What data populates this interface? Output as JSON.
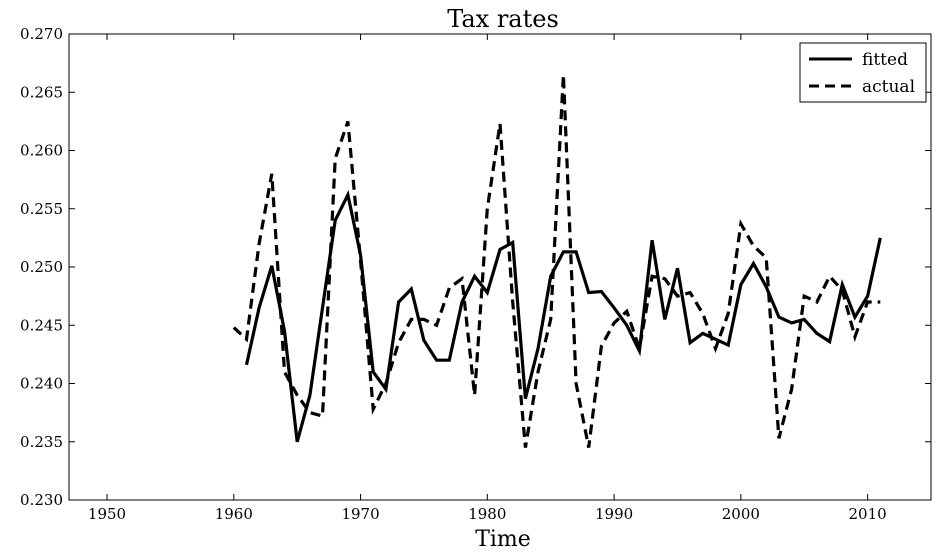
{
  "chart_data": {
    "type": "line",
    "title": "Tax rates",
    "xlabel": "Time",
    "ylabel": "",
    "xlim": [
      1947,
      2015
    ],
    "ylim": [
      0.23,
      0.27
    ],
    "xticks": [
      1950,
      1960,
      1970,
      1980,
      1990,
      2000,
      2010
    ],
    "yticks": [
      "0.230",
      "0.235",
      "0.240",
      "0.245",
      "0.250",
      "0.255",
      "0.260",
      "0.265",
      "0.270"
    ],
    "grid": false,
    "legend_position": "top-right",
    "series": [
      {
        "name": "fitted",
        "style": "solid",
        "color": "#000000",
        "x": [
          1961,
          1962,
          1963,
          1964,
          1965,
          1966,
          1967,
          1968,
          1969,
          1970,
          1971,
          1972,
          1973,
          1974,
          1975,
          1976,
          1977,
          1978,
          1979,
          1980,
          1981,
          1982,
          1983,
          1984,
          1985,
          1986,
          1987,
          1988,
          1989,
          1990,
          1991,
          1992,
          1993,
          1994,
          1995,
          1996,
          1997,
          1998,
          1999,
          2000,
          2001,
          2002,
          2003,
          2004,
          2005,
          2006,
          2007,
          2008,
          2009,
          2010,
          2011
        ],
        "y": [
          0.2416,
          0.2465,
          0.2501,
          0.2445,
          0.235,
          0.239,
          0.2465,
          0.254,
          0.2562,
          0.251,
          0.241,
          0.2395,
          0.247,
          0.2481,
          0.2437,
          0.242,
          0.242,
          0.247,
          0.2492,
          0.2478,
          0.2515,
          0.2521,
          0.2387,
          0.243,
          0.2492,
          0.2513,
          0.2513,
          0.2478,
          0.2479,
          0.2465,
          0.245,
          0.2428,
          0.2523,
          0.2455,
          0.2499,
          0.2435,
          0.2443,
          0.2438,
          0.2433,
          0.2485,
          0.2503,
          0.2483,
          0.2457,
          0.2452,
          0.2455,
          0.2443,
          0.2436,
          0.2485,
          0.2457,
          0.2475,
          0.2525
        ]
      },
      {
        "name": "actual",
        "style": "dashed",
        "color": "#000000",
        "x": [
          1960,
          1961,
          1962,
          1963,
          1964,
          1965,
          1966,
          1967,
          1968,
          1969,
          1970,
          1971,
          1972,
          1973,
          1974,
          1975,
          1976,
          1977,
          1978,
          1979,
          1980,
          1981,
          1982,
          1983,
          1984,
          1985,
          1986,
          1987,
          1988,
          1989,
          1990,
          1991,
          1992,
          1993,
          1994,
          1995,
          1996,
          1997,
          1998,
          1999,
          2000,
          2001,
          2002,
          2003,
          2004,
          2005,
          2006,
          2007,
          2008,
          2009,
          2010,
          2011
        ],
        "y": [
          0.2448,
          0.2438,
          0.252,
          0.258,
          0.241,
          0.239,
          0.2375,
          0.2372,
          0.2593,
          0.2625,
          0.2505,
          0.2378,
          0.24,
          0.2435,
          0.2455,
          0.2455,
          0.245,
          0.2482,
          0.249,
          0.239,
          0.255,
          0.2623,
          0.247,
          0.2345,
          0.241,
          0.2455,
          0.2665,
          0.24,
          0.2345,
          0.2432,
          0.2452,
          0.2462,
          0.243,
          0.2492,
          0.249,
          0.2475,
          0.2478,
          0.246,
          0.243,
          0.246,
          0.2537,
          0.2518,
          0.2508,
          0.2353,
          0.2395,
          0.2475,
          0.247,
          0.2492,
          0.248,
          0.244,
          0.247,
          0.247
        ]
      }
    ]
  }
}
